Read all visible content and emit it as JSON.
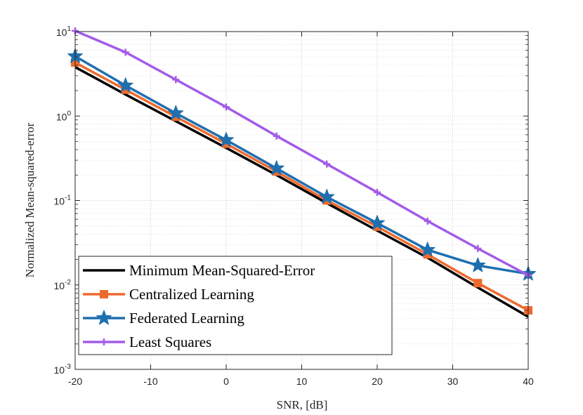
{
  "chart_data": {
    "type": "line",
    "xlabel": "SNR, [dB]",
    "ylabel": "Normalized Mean-squared-error",
    "yscale": "log",
    "xlim": [
      -20,
      40
    ],
    "ylim": [
      0.001,
      10
    ],
    "xticks": [
      -20,
      -10,
      0,
      10,
      20,
      30,
      40
    ],
    "xtick_labels": [
      "-20",
      "-10",
      "0",
      "10",
      "20",
      "30",
      "40"
    ],
    "yticks": [
      {
        "base": "10",
        "exp": "1",
        "value": 10
      },
      {
        "base": "10",
        "exp": "0",
        "value": 1
      },
      {
        "base": "10",
        "exp": "-1",
        "value": 0.1
      },
      {
        "base": "10",
        "exp": "-2",
        "value": 0.01
      },
      {
        "base": "10",
        "exp": "-3",
        "value": 0.001
      }
    ],
    "grid": true,
    "legend_position": "bottom-left",
    "x": [
      -20,
      -13.33,
      -6.67,
      0,
      6.67,
      13.33,
      20,
      26.67,
      33.33,
      40
    ],
    "series": [
      {
        "name": "Minimum Mean-Squared-Error",
        "color": "#000000",
        "marker": "none",
        "values": [
          3.8,
          1.8,
          0.87,
          0.42,
          0.2,
          0.093,
          0.044,
          0.021,
          0.0093,
          0.0042
        ]
      },
      {
        "name": "Centralized Learning",
        "color": "#ED6A2E",
        "marker": "square",
        "values": [
          4.3,
          2.05,
          0.98,
          0.47,
          0.22,
          0.1,
          0.049,
          0.023,
          0.0105,
          0.005
        ]
      },
      {
        "name": "Federated Learning",
        "color": "#1F6FAF",
        "marker": "star",
        "values": [
          5.1,
          2.3,
          1.08,
          0.52,
          0.24,
          0.11,
          0.054,
          0.026,
          0.017,
          0.0135
        ]
      },
      {
        "name": "Least Squares",
        "color": "#A35BE8",
        "marker": "plus",
        "values": [
          10.2,
          5.7,
          2.7,
          1.28,
          0.58,
          0.27,
          0.125,
          0.057,
          0.027,
          0.013
        ]
      }
    ]
  }
}
